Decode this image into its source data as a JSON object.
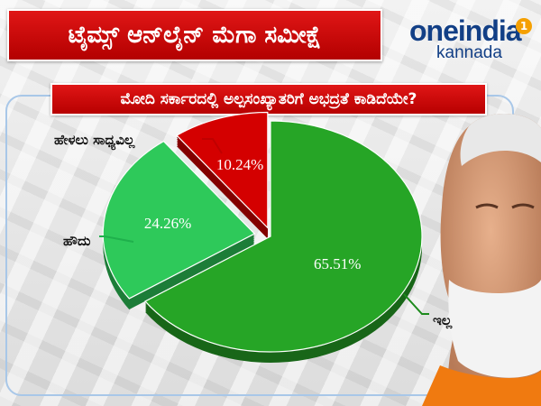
{
  "header": {
    "title": "ಟೈಮ್ಸ್ ಆನ್‌ಲೈನ್ ಮೆಗಾ ಸಮೀಕ್ಷೆ"
  },
  "logo": {
    "main": "oneindia",
    "sub": "kannada",
    "badge": "1"
  },
  "question": "ಮೋದಿ ಸರ್ಕಾರದಲ್ಲಿ ಅಲ್ಪಸಂಖ್ಯಾತರಿಗೆ ಅಭದ್ರತೆ ಕಾಡಿದೆಯೇ?",
  "colors": {
    "red": "#d40000",
    "green": "#26a526",
    "light_green": "#2ec95a",
    "title_red": "#d41010",
    "brand_blue": "#123f86"
  },
  "chart_data": {
    "type": "pie",
    "title": "ಮೋದಿ ಸರ್ಕಾರದಲ್ಲಿ ಅಲ್ಪಸಂಖ್ಯಾತರಿಗೆ ಅಭದ್ರತೆ ಕಾಡಿದೆಯೇ?",
    "slices": [
      {
        "label": "ಇಲ್ಲ",
        "value": 65.51,
        "value_label": "65.51%",
        "color": "#26a526"
      },
      {
        "label": "ಹೌದು",
        "value": 24.26,
        "value_label": "24.26%",
        "color": "#2ec95a"
      },
      {
        "label": "ಹೇಳಲು ಸಾಧ್ಯವಿಲ್ಲ",
        "value": 10.24,
        "value_label": "10.24%",
        "color": "#d40000"
      }
    ]
  }
}
